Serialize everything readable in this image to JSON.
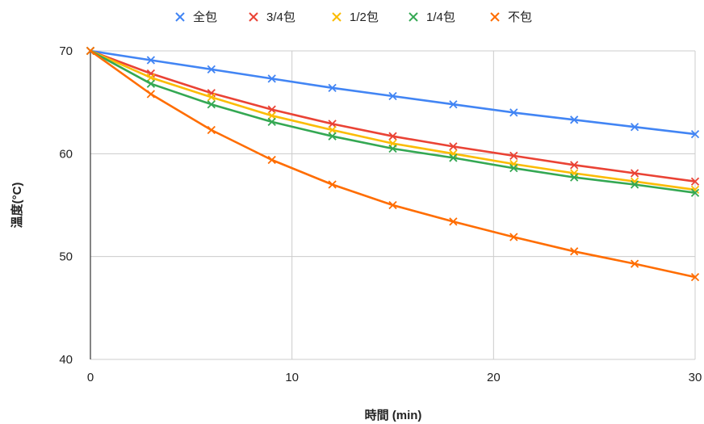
{
  "chart_data": {
    "type": "line",
    "xlabel": "時間 (min)",
    "ylabel": "溫度(°C)",
    "xlim": [
      0,
      30
    ],
    "ylim": [
      40,
      70
    ],
    "xticks": [
      "0",
      "10",
      "20",
      "30"
    ],
    "yticks": [
      "40",
      "50",
      "60",
      "70"
    ],
    "grid": true,
    "legend_position": "top",
    "marker": "x",
    "x": [
      0,
      3,
      6,
      9,
      12,
      15,
      18,
      21,
      24,
      27,
      30
    ],
    "series": [
      {
        "name": "全包",
        "color": "#4285f4",
        "values": [
          70,
          69.1,
          68.2,
          67.3,
          66.4,
          65.6,
          64.8,
          64.0,
          63.3,
          62.6,
          61.9
        ]
      },
      {
        "name": "3/4包",
        "color": "#ea4335",
        "values": [
          70,
          67.8,
          65.9,
          64.3,
          62.9,
          61.7,
          60.7,
          59.8,
          58.9,
          58.1,
          57.3
        ]
      },
      {
        "name": "1/2包",
        "color": "#fbbc04",
        "values": [
          70,
          67.4,
          65.5,
          63.7,
          62.3,
          61.0,
          60.0,
          59.0,
          58.1,
          57.3,
          56.5
        ]
      },
      {
        "name": "1/4包",
        "color": "#34a853",
        "values": [
          70,
          66.8,
          64.8,
          63.1,
          61.7,
          60.5,
          59.6,
          58.6,
          57.7,
          57.0,
          56.2
        ]
      },
      {
        "name": "不包",
        "color": "#ff6d01",
        "values": [
          70,
          65.8,
          62.3,
          59.4,
          57.0,
          55.0,
          53.4,
          51.9,
          50.5,
          49.3,
          48.0
        ]
      }
    ]
  }
}
